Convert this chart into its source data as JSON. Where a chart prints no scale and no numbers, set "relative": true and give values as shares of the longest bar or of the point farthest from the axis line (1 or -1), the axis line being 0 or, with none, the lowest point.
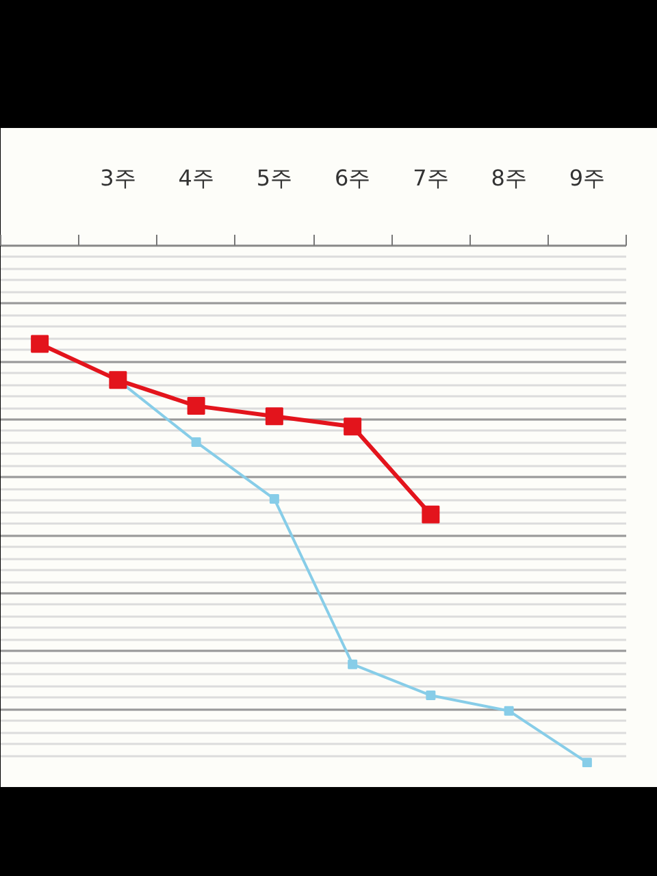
{
  "chart_data": {
    "type": "line",
    "categories": [
      null,
      "3주",
      "4주",
      "5주",
      "6주",
      "7주",
      "8주",
      "9주"
    ],
    "relative": true,
    "grid": "y",
    "marker": "square",
    "series": [
      {
        "color": "#e3141c",
        "values": [
          -0.19,
          -0.26,
          -0.31,
          -0.33,
          -0.35,
          -0.52,
          null,
          null
        ]
      },
      {
        "color": "#87cde8",
        "values": [
          -0.19,
          -0.26,
          -0.38,
          -0.49,
          -0.81,
          -0.87,
          -0.9,
          -1
        ]
      }
    ]
  }
}
